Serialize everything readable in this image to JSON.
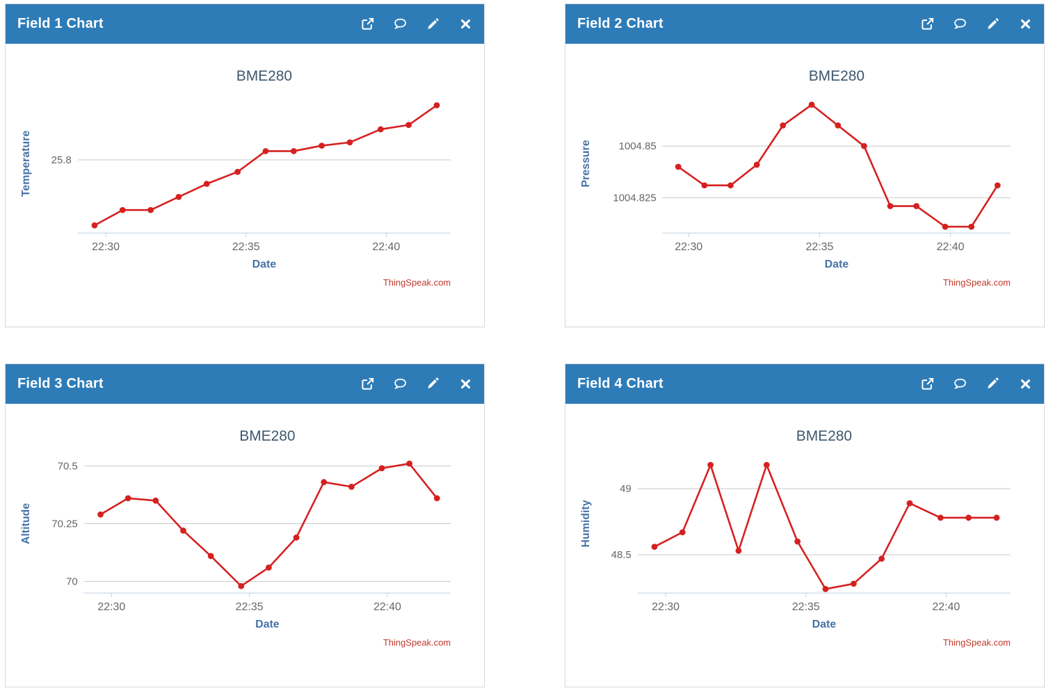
{
  "colors": {
    "header_bg": "#2e7cb7",
    "header_text": "#ffffff",
    "panel_border": "#d7d7d7",
    "series": "#d62020",
    "grid": "#c9c9c9",
    "axis_line": "#c0d0e0",
    "tick_label": "#666666",
    "axis_title": "#4572a7",
    "chart_title": "#3e576f",
    "credits": "#c0392b"
  },
  "header_icons": [
    {
      "name": "open-in-new-window-icon"
    },
    {
      "name": "comment-icon"
    },
    {
      "name": "edit-icon"
    },
    {
      "name": "close-icon"
    }
  ],
  "panels": [
    {
      "title": "Field 1 Chart"
    },
    {
      "title": "Field 2 Chart"
    },
    {
      "title": "Field 3 Chart"
    },
    {
      "title": "Field 4 Chart"
    }
  ],
  "chart_data": [
    {
      "type": "line",
      "title": "BME280",
      "xlabel": "Date",
      "ylabel": "Temperature",
      "credits": "ThingSpeak.com",
      "legend": "off",
      "grid": "horizontal-only",
      "x_tick_labels": [
        {
          "value": 30,
          "label": "22:30"
        },
        {
          "value": 35,
          "label": "22:35"
        },
        {
          "value": 40,
          "label": "22:40"
        }
      ],
      "y_gridlines": [
        {
          "value": 25.8,
          "label": "25.8"
        }
      ],
      "x_domain": [
        29.0,
        42.3
      ],
      "y_domain": [
        25.733,
        25.86
      ],
      "x_minutes": [
        29.6,
        30.6,
        31.6,
        32.6,
        33.6,
        34.7,
        35.7,
        36.7,
        37.7,
        38.7,
        39.8,
        40.8,
        41.8
      ],
      "values": [
        25.74,
        25.754,
        25.754,
        25.766,
        25.778,
        25.789,
        25.808,
        25.808,
        25.813,
        25.816,
        25.828,
        25.832,
        25.85
      ]
    },
    {
      "type": "line",
      "title": "BME280",
      "xlabel": "Date",
      "ylabel": "Pressure",
      "credits": "ThingSpeak.com",
      "legend": "off",
      "grid": "horizontal-only",
      "x_tick_labels": [
        {
          "value": 30,
          "label": "22:30"
        },
        {
          "value": 35,
          "label": "22:35"
        },
        {
          "value": 40,
          "label": "22:40"
        }
      ],
      "y_gridlines": [
        {
          "value": 1004.85,
          "label": "1004.85"
        },
        {
          "value": 1004.825,
          "label": "1004.825"
        }
      ],
      "x_domain": [
        29.0,
        42.3
      ],
      "y_domain": [
        1004.808,
        1004.875
      ],
      "x_minutes": [
        29.6,
        30.6,
        31.6,
        32.6,
        33.6,
        34.7,
        35.7,
        36.7,
        37.7,
        38.7,
        39.8,
        40.8,
        41.8
      ],
      "values": [
        1004.84,
        1004.831,
        1004.831,
        1004.841,
        1004.86,
        1004.87,
        1004.86,
        1004.85,
        1004.821,
        1004.821,
        1004.811,
        1004.811,
        1004.831
      ]
    },
    {
      "type": "line",
      "title": "BME280",
      "xlabel": "Date",
      "ylabel": "Altitude",
      "credits": "ThingSpeak.com",
      "legend": "off",
      "grid": "horizontal-only",
      "x_tick_labels": [
        {
          "value": 30,
          "label": "22:30"
        },
        {
          "value": 35,
          "label": "22:35"
        },
        {
          "value": 40,
          "label": "22:40"
        }
      ],
      "y_gridlines": [
        {
          "value": 70.5,
          "label": "70.5"
        },
        {
          "value": 70.25,
          "label": "70.25"
        },
        {
          "value": 70.0,
          "label": "70"
        }
      ],
      "x_domain": [
        29.0,
        42.3
      ],
      "y_domain": [
        69.95,
        70.55
      ],
      "x_minutes": [
        29.6,
        30.6,
        31.6,
        32.6,
        33.6,
        34.7,
        35.7,
        36.7,
        37.7,
        38.7,
        39.8,
        40.8,
        41.8
      ],
      "values": [
        70.29,
        70.36,
        70.35,
        70.22,
        70.11,
        69.98,
        70.06,
        70.19,
        70.43,
        70.41,
        70.49,
        70.51,
        70.36
      ]
    },
    {
      "type": "line",
      "title": "BME280",
      "xlabel": "Date",
      "ylabel": "Humidity",
      "credits": "ThingSpeak.com",
      "legend": "off",
      "grid": "horizontal-only",
      "x_tick_labels": [
        {
          "value": 30,
          "label": "22:30"
        },
        {
          "value": 35,
          "label": "22:35"
        },
        {
          "value": 40,
          "label": "22:40"
        }
      ],
      "y_gridlines": [
        {
          "value": 49.0,
          "label": "49"
        },
        {
          "value": 48.5,
          "label": "48.5"
        }
      ],
      "x_domain": [
        29.0,
        42.3
      ],
      "y_domain": [
        48.21,
        49.26
      ],
      "x_minutes": [
        29.6,
        30.6,
        31.6,
        32.6,
        33.6,
        34.7,
        35.7,
        36.7,
        37.7,
        38.7,
        39.8,
        40.8,
        41.8
      ],
      "values": [
        48.56,
        48.67,
        49.18,
        48.53,
        49.18,
        48.6,
        48.24,
        48.28,
        48.47,
        48.89,
        48.78,
        48.78,
        48.78
      ]
    }
  ]
}
